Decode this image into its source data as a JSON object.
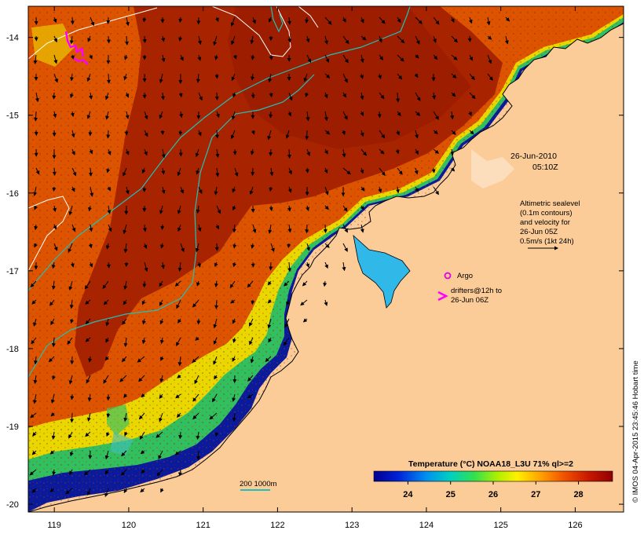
{
  "map": {
    "date": "26-Jun-2010",
    "time": "05:10Z",
    "altimetry_note": [
      "Altimetric sealevel",
      "(0.1m contours)",
      "and velocity for",
      "26-Jun 05Z",
      "0.5m/s (1kt 24h)"
    ],
    "argo_label": "Argo",
    "drifter_label": [
      "drifters@12h to",
      "26-Jun 06Z"
    ],
    "bathymetry_label": "200  1000m",
    "credit": "© IMOS 04-Apr-2015 23:45:46 Hobart time",
    "colorbar_title": "Temperature (°C) NOAA18_L3U 71% ql>=2",
    "colorbar_ticks": [
      "24",
      "25",
      "26",
      "27",
      "28"
    ],
    "y_ticks": [
      "-14",
      "-15",
      "-16",
      "-17",
      "-18",
      "-19",
      "-20"
    ],
    "x_ticks": [
      "119",
      "120",
      "121",
      "122",
      "123",
      "124",
      "125",
      "126"
    ],
    "lat_range": [
      -20.1,
      -13.6
    ],
    "lon_range": [
      118.65,
      126.65
    ],
    "temperature_range_c": [
      23.2,
      28.8
    ],
    "colors": {
      "land": "#fbcb98",
      "warm_sea": "#a32100",
      "cool_sea": "#0a1a9c",
      "argo_marker": "#e000e0",
      "contour_isobath": "#20c0b8",
      "contour_sealevel": "#ffffff"
    }
  }
}
